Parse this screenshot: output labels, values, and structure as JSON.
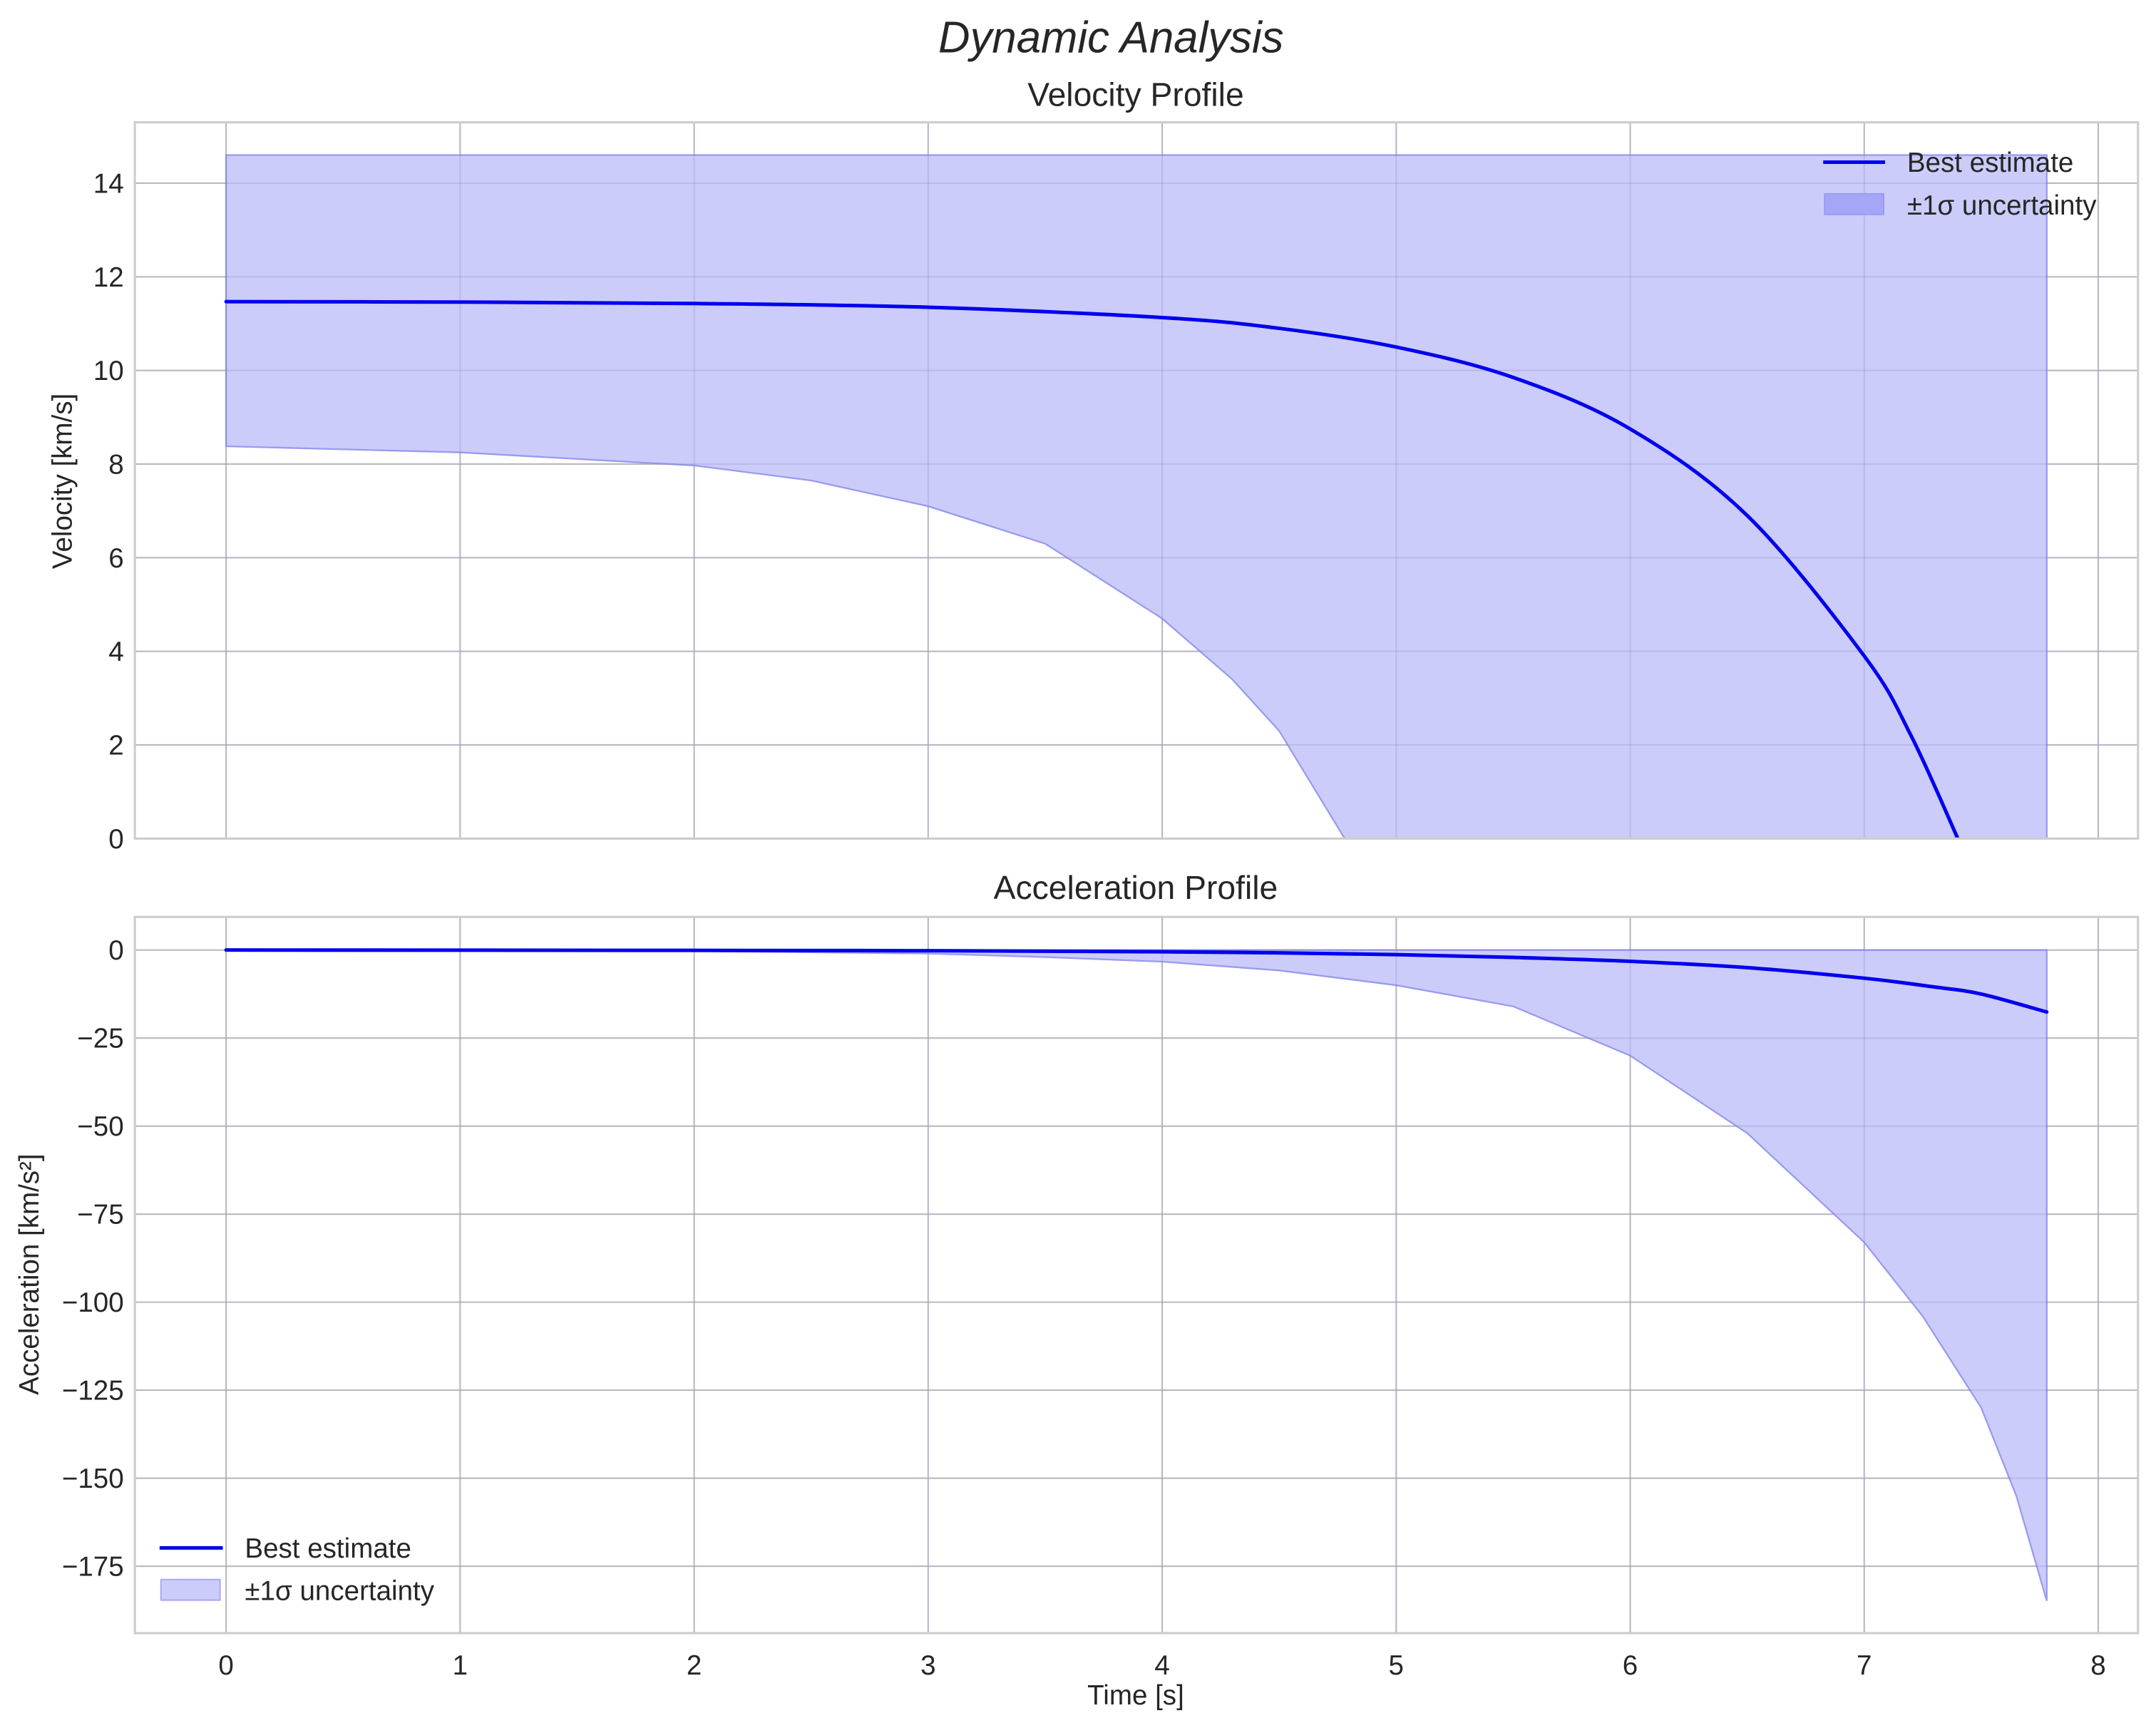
{
  "figure": {
    "title": "Dynamic Analysis",
    "xlabel": "Time [s]"
  },
  "legend": {
    "best": "Best estimate",
    "band": "±1σ uncertainty"
  },
  "colors": {
    "line": "#0000EE",
    "band_fill": "#CCCCFA",
    "band_edge": "#9A9AF0",
    "grid": "#CCCCCC",
    "text": "#262626"
  },
  "chart_data": [
    {
      "type": "line",
      "title": "Velocity Profile",
      "xlabel": "",
      "ylabel": "Velocity [km/s]",
      "xlim": [
        -0.39,
        8.17
      ],
      "ylim": [
        0,
        15.3
      ],
      "xticks": [
        0,
        1,
        2,
        3,
        4,
        5,
        6,
        7,
        8
      ],
      "yticks": [
        0,
        2,
        4,
        6,
        8,
        10,
        12,
        14
      ],
      "grid": true,
      "legend_position": "upper right",
      "series": [
        {
          "name": "Best estimate",
          "kind": "line",
          "x": [
            0,
            1,
            2,
            3,
            4,
            4.5,
            5,
            5.5,
            6,
            6.5,
            7,
            7.2,
            7.4
          ],
          "y": [
            11.47,
            11.46,
            11.43,
            11.35,
            11.13,
            10.9,
            10.5,
            9.85,
            8.75,
            6.9,
            3.9,
            2.2,
            0
          ]
        },
        {
          "name": "±1σ uncertainty",
          "kind": "band",
          "x_upper": [
            0,
            7.78
          ],
          "upper": [
            14.6,
            14.6
          ],
          "x_lower": [
            0,
            1,
            2,
            2.5,
            3,
            3.5,
            4,
            4.3,
            4.5,
            4.78
          ],
          "lower": [
            8.38,
            8.25,
            7.97,
            7.65,
            7.1,
            6.3,
            4.7,
            3.4,
            2.3,
            0
          ],
          "x_end": 7.78
        }
      ]
    },
    {
      "type": "line",
      "title": "Acceleration Profile",
      "xlabel": "Time [s]",
      "ylabel": "Acceleration [km/s²]",
      "xlim": [
        -0.39,
        8.17
      ],
      "ylim": [
        -194,
        9.4
      ],
      "xticks": [
        0,
        1,
        2,
        3,
        4,
        5,
        6,
        7,
        8
      ],
      "yticks": [
        0,
        -25,
        -50,
        -75,
        -100,
        -125,
        -150,
        -175
      ],
      "ytick_labels": [
        "0",
        "−25",
        "−50",
        "−75",
        "−100",
        "−125",
        "−150",
        "−175"
      ],
      "grid": true,
      "legend_position": "lower left",
      "series": [
        {
          "name": "Best estimate",
          "kind": "line",
          "x": [
            0,
            2,
            3,
            4,
            4.5,
            5,
            5.5,
            6,
            6.5,
            7,
            7.3,
            7.5,
            7.78
          ],
          "y": [
            0,
            -0.1,
            -0.2,
            -0.5,
            -0.8,
            -1.3,
            -2.1,
            -3.2,
            -5,
            -8,
            -10.5,
            -12.5,
            -17.6
          ]
        },
        {
          "name": "±1σ uncertainty",
          "kind": "band",
          "x_upper": [
            0,
            7.78
          ],
          "upper": [
            0,
            0
          ],
          "x_lower": [
            0,
            2,
            3,
            3.5,
            4,
            4.5,
            5,
            5.5,
            6,
            6.5,
            7,
            7.25,
            7.5,
            7.65,
            7.78
          ],
          "lower": [
            0,
            -0.3,
            -1,
            -2,
            -3.3,
            -5.8,
            -10,
            -16,
            -30,
            -52,
            -83,
            -104,
            -130,
            -155,
            -184.8
          ],
          "x_end": 7.78
        }
      ]
    }
  ]
}
